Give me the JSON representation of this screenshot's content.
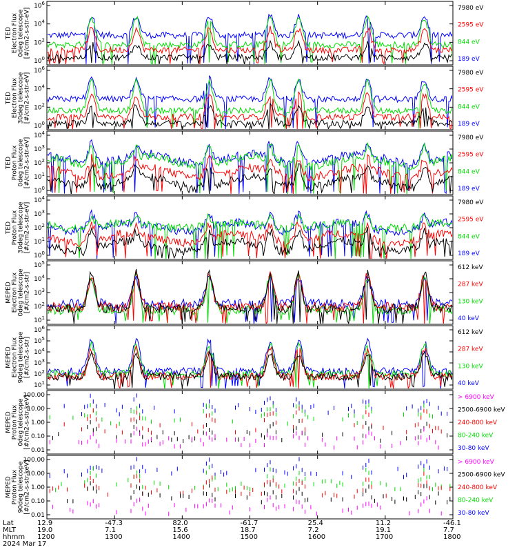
{
  "colors": {
    "black": "#000000",
    "red": "#ff0000",
    "green": "#00dd00",
    "blue": "#0000ff",
    "magenta": "#ff00ff"
  },
  "chart_data": [
    {
      "type": "line",
      "instrument": "TED",
      "ylabel": [
        "TED",
        "Electron Flux",
        "0deg telescope",
        "[#/cm2-s-str-eV]"
      ],
      "y_ticks": [
        "10^6",
        "10^4",
        "10^2",
        "10^0"
      ],
      "ylim_log10": [
        0,
        6
      ],
      "legend": [
        {
          "label": "7980 eV",
          "color": "#000000"
        },
        {
          "label": "2595 eV",
          "color": "#ff0000"
        },
        {
          "label": "844 eV",
          "color": "#00dd00"
        },
        {
          "label": "189 eV",
          "color": "#0000ff"
        }
      ],
      "series_log10_levels": {
        "7980 eV": {
          "baseline": 0.7,
          "peak": 2.0
        },
        "2595 eV": {
          "baseline": 1.4,
          "peak": 3.4
        },
        "844 eV": {
          "baseline": 1.9,
          "peak": 4.5
        },
        "189 eV": {
          "baseline": 2.8,
          "peak": 4.6
        }
      }
    },
    {
      "type": "line",
      "instrument": "TED",
      "ylabel": [
        "TED",
        "Electron Flux",
        "30deg telescope",
        "[#/cm2-s-str-eV]"
      ],
      "y_ticks": [
        "10^6",
        "10^4",
        "10^2",
        "10^0"
      ],
      "ylim_log10": [
        0,
        6
      ],
      "legend": [
        {
          "label": "7980 eV",
          "color": "#000000"
        },
        {
          "label": "2595 eV",
          "color": "#ff0000"
        },
        {
          "label": "844 eV",
          "color": "#00dd00"
        },
        {
          "label": "189 eV",
          "color": "#0000ff"
        }
      ],
      "series_log10_levels": {
        "7980 eV": {
          "baseline": 0.6,
          "peak": 2.2
        },
        "2595 eV": {
          "baseline": 1.2,
          "peak": 3.3
        },
        "844 eV": {
          "baseline": 1.8,
          "peak": 4.5
        },
        "189 eV": {
          "baseline": 2.9,
          "peak": 4.8
        }
      }
    },
    {
      "type": "line",
      "instrument": "TED",
      "ylabel": [
        "TED",
        "Proton Flux",
        "0deg telescope",
        "[#/cm2-s-str-eV]"
      ],
      "y_ticks": [
        "10^4",
        "10^3",
        "10^2",
        "10^1",
        "10^0"
      ],
      "ylim_log10": [
        0,
        4.5
      ],
      "legend": [
        {
          "label": "7980 eV",
          "color": "#000000"
        },
        {
          "label": "2595 eV",
          "color": "#ff0000"
        },
        {
          "label": "844 eV",
          "color": "#00dd00"
        },
        {
          "label": "189 eV",
          "color": "#0000ff"
        }
      ],
      "series_log10_levels": {
        "7980 eV": {
          "baseline": 0.5,
          "peak": 2.0
        },
        "2595 eV": {
          "baseline": 1.2,
          "peak": 2.6
        },
        "844 eV": {
          "baseline": 2.0,
          "peak": 3.4
        },
        "189 eV": {
          "baseline": 2.2,
          "peak": 3.6
        }
      }
    },
    {
      "type": "line",
      "instrument": "TED",
      "ylabel": [
        "TED",
        "Proton Flux",
        "30deg telescope",
        "[#/cm2-s-str-eV]"
      ],
      "y_ticks": [
        "10^4",
        "10^3",
        "10^2",
        "10^1",
        "10^0"
      ],
      "ylim_log10": [
        0,
        4.5
      ],
      "legend": [
        {
          "label": "7980 eV",
          "color": "#000000"
        },
        {
          "label": "2595 eV",
          "color": "#ff0000"
        },
        {
          "label": "844 eV",
          "color": "#00dd00"
        },
        {
          "label": "189 eV",
          "color": "#0000ff"
        }
      ],
      "series_log10_levels": {
        "7980 eV": {
          "baseline": 0.6,
          "peak": 2.0
        },
        "2595 eV": {
          "baseline": 1.2,
          "peak": 2.5
        },
        "844 eV": {
          "baseline": 2.2,
          "peak": 3.0
        },
        "189 eV": {
          "baseline": 2.0,
          "peak": 3.2
        }
      }
    },
    {
      "type": "line",
      "instrument": "MEPED",
      "ylabel": [
        "MEPED",
        "Electron Flux",
        "0deg telescope",
        "[#/cm2-s-str]"
      ],
      "y_ticks": [
        "10^5",
        "10^4",
        "10^3",
        "10^2",
        "10^1"
      ],
      "ylim_log10": [
        1,
        5
      ],
      "legend": [
        {
          "label": "612 keV",
          "color": "#000000"
        },
        {
          "label": "287 keV",
          "color": "#ff0000"
        },
        {
          "label": "130 keV",
          "color": "#00dd00"
        },
        {
          "label": "40 keV",
          "color": "#0000ff"
        }
      ],
      "series_log10_levels": {
        "612 keV": {
          "baseline": 2.0,
          "peak": 4.2
        },
        "287 keV": {
          "baseline": 2.1,
          "peak": 4.1
        },
        "130 keV": {
          "baseline": 1.9,
          "peak": 4.0
        },
        "40 keV": {
          "baseline": 2.3,
          "peak": 3.9
        }
      }
    },
    {
      "type": "line",
      "instrument": "MEPED",
      "ylabel": [
        "MEPED",
        "Electron Flux",
        "90deg telescope",
        "[#/cm2-s-str]"
      ],
      "y_ticks": [
        "10^6",
        "10^5",
        "10^4",
        "10^3",
        "10^2",
        "10^1"
      ],
      "ylim_log10": [
        1,
        6
      ],
      "legend": [
        {
          "label": "612 keV",
          "color": "#000000"
        },
        {
          "label": "287 keV",
          "color": "#ff0000"
        },
        {
          "label": "130 keV",
          "color": "#00dd00"
        },
        {
          "label": "40 keV",
          "color": "#0000ff"
        }
      ],
      "series_log10_levels": {
        "612 keV": {
          "baseline": 2.0,
          "peak": 3.8
        },
        "287 keV": {
          "baseline": 2.0,
          "peak": 4.2
        },
        "130 keV": {
          "baseline": 2.2,
          "peak": 4.5
        },
        "40 keV": {
          "baseline": 2.4,
          "peak": 4.8
        }
      }
    },
    {
      "type": "scatter",
      "instrument": "MEPED",
      "ylabel": [
        "MEPED",
        "Proton Flux",
        "0deg telescope",
        "[#/cm2-s-str-keV]"
      ],
      "y_ticks": [
        "100.00",
        "10.00",
        "1.00",
        "0.10",
        "0.01"
      ],
      "ylim_log10": [
        -2,
        2
      ],
      "legend": [
        {
          "label": "> 6900 keV",
          "color": "#ff00ff"
        },
        {
          "label": "2500-6900 keV",
          "color": "#000000"
        },
        {
          "label": "240-800 keV",
          "color": "#ff0000"
        },
        {
          "label": "80-240 keV",
          "color": "#00dd00"
        },
        {
          "label": "30-80 keV",
          "color": "#0000ff"
        }
      ],
      "series_log10_levels": {
        "> 6900 keV": {
          "baseline": -1.3,
          "peak": -0.7
        },
        "2500-6900 keV": {
          "baseline": -0.9,
          "peak": -0.2
        },
        "240-800 keV": {
          "baseline": -0.4,
          "peak": 0.6
        },
        "80-240 keV": {
          "baseline": 0.2,
          "peak": 1.0
        },
        "30-80 keV": {
          "baseline": 0.8,
          "peak": 1.4
        }
      }
    },
    {
      "type": "scatter",
      "instrument": "MEPED",
      "ylabel": [
        "MEPED",
        "Proton Flux",
        "90deg telescope",
        "[#/cm2-s-str-keV]"
      ],
      "y_ticks": [
        "100.00",
        "10.00",
        "1.00",
        "0.10",
        "0.01"
      ],
      "ylim_log10": [
        -2,
        2
      ],
      "legend": [
        {
          "label": "> 6900 keV",
          "color": "#ff00ff"
        },
        {
          "label": "2500-6900 keV",
          "color": "#000000"
        },
        {
          "label": "240-800 keV",
          "color": "#ff0000"
        },
        {
          "label": "80-240 keV",
          "color": "#00dd00"
        },
        {
          "label": "30-80 keV",
          "color": "#0000ff"
        }
      ],
      "series_log10_levels": {
        "> 6900 keV": {
          "baseline": -1.4,
          "peak": -0.8
        },
        "2500-6900 keV": {
          "baseline": -0.7,
          "peak": 0.0
        },
        "240-800 keV": {
          "baseline": -0.3,
          "peak": 0.6
        },
        "80-240 keV": {
          "baseline": 0.1,
          "peak": 1.0
        },
        "30-80 keV": {
          "baseline": 0.9,
          "peak": 1.5
        }
      }
    }
  ],
  "time_axis": {
    "row_labels": [
      "Lat",
      "MLT",
      "hhmm"
    ],
    "lat": [
      "12.9",
      "-47.3",
      "82.0",
      "-61.7",
      "25.4",
      "11.2",
      "-46.1"
    ],
    "mlt": [
      "19.0",
      "7.1",
      "15.6",
      "18.7",
      "7.2",
      "19.1",
      "7.7"
    ],
    "hhmm": [
      "1200",
      "1300",
      "1400",
      "1500",
      "1600",
      "1700",
      "1800"
    ],
    "date": "2024 Mar 17"
  }
}
